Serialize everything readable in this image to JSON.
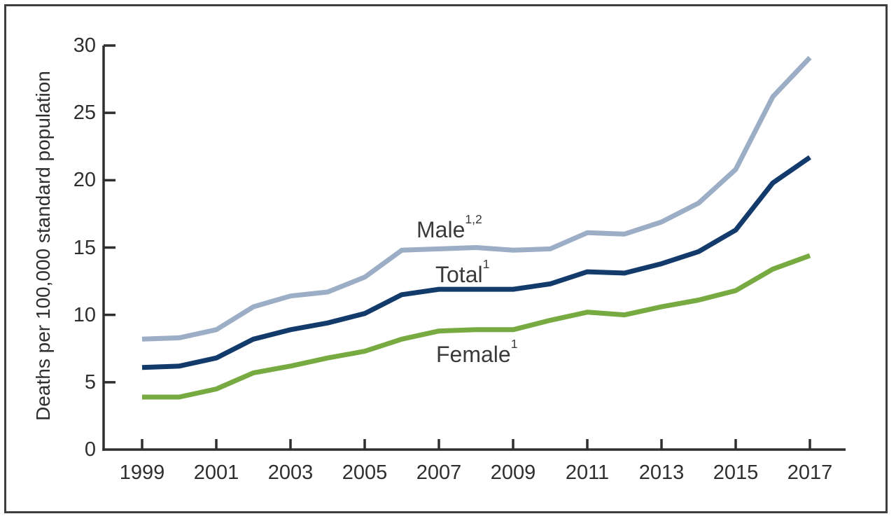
{
  "figure": {
    "border_color": "#3f3f3f",
    "background": "#ffffff"
  },
  "chart_data": {
    "type": "line",
    "title": "",
    "xlabel": "",
    "ylabel": "Deaths per 100,000 standard population",
    "grid": false,
    "legend_position": "inline-labels",
    "xlim": [
      1999,
      2017
    ],
    "ylim": [
      0,
      30
    ],
    "x": [
      1999,
      2000,
      2001,
      2002,
      2003,
      2004,
      2005,
      2006,
      2007,
      2008,
      2009,
      2010,
      2011,
      2012,
      2013,
      2014,
      2015,
      2016,
      2017
    ],
    "xticks": [
      1999,
      2001,
      2003,
      2005,
      2007,
      2009,
      2011,
      2013,
      2015,
      2017
    ],
    "xtick_labels": [
      "1999",
      "2001",
      "2003",
      "2005",
      "2007",
      "2009",
      "2011",
      "2013",
      "2015",
      "2017"
    ],
    "yticks": [
      0,
      5,
      10,
      15,
      20,
      25,
      30
    ],
    "ytick_labels": [
      "0",
      "5",
      "10",
      "15",
      "20",
      "25",
      "30"
    ],
    "axis_color": "#2f2f2f",
    "series": [
      {
        "name": "Male",
        "sup": "1,2",
        "color": "#9cadc6",
        "values": [
          8.2,
          8.3,
          8.9,
          10.6,
          11.4,
          11.7,
          12.8,
          14.8,
          14.9,
          15.0,
          14.8,
          14.9,
          16.1,
          16.0,
          16.9,
          18.3,
          20.8,
          26.2,
          29.1
        ],
        "label_pos": {
          "x": 595,
          "y": 310
        }
      },
      {
        "name": "Total",
        "sup": "1",
        "color": "#123a6b",
        "values": [
          6.1,
          6.2,
          6.8,
          8.2,
          8.9,
          9.4,
          10.1,
          11.5,
          11.9,
          11.9,
          11.9,
          12.3,
          13.2,
          13.1,
          13.8,
          14.7,
          16.3,
          19.8,
          21.7
        ],
        "label_pos": {
          "x": 622,
          "y": 374
        }
      },
      {
        "name": "Female",
        "sup": "1",
        "color": "#77aa41",
        "values": [
          3.9,
          3.9,
          4.5,
          5.7,
          6.2,
          6.8,
          7.3,
          8.2,
          8.8,
          8.9,
          8.9,
          9.6,
          10.2,
          10.0,
          10.6,
          11.1,
          11.8,
          13.4,
          14.4
        ],
        "label_pos": {
          "x": 623,
          "y": 488
        }
      }
    ]
  }
}
